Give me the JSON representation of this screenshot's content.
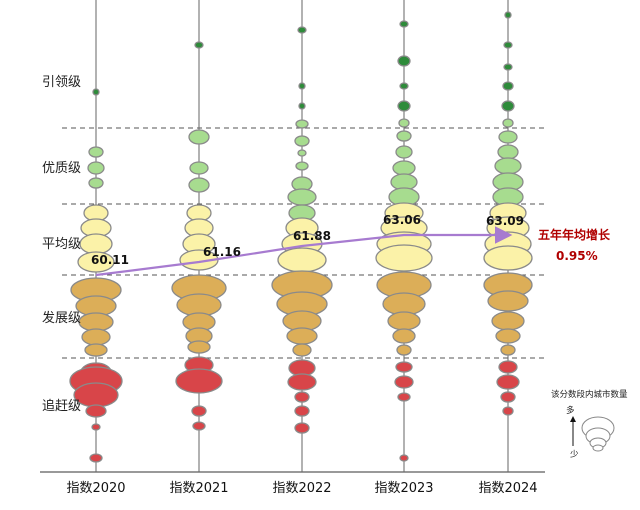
{
  "chart_data": {
    "type": "bubble-column",
    "categories": [
      "指数2020",
      "指数2021",
      "指数2022",
      "指数2023",
      "指数2024"
    ],
    "tiers": [
      "引领级",
      "优质级",
      "平均级",
      "发展级",
      "追赶级"
    ],
    "tier_colors": {
      "引领级": "#2e8b3a",
      "优质级": "#a7dc8f",
      "平均级": "#fbf2a8",
      "发展级": "#dcae58",
      "追赶级": "#d84549"
    },
    "averages": [
      60.11,
      61.16,
      61.88,
      63.06,
      63.09
    ],
    "average_labels": [
      "60.11",
      "61.16",
      "61.88",
      "63.06",
      "63.09"
    ],
    "trend_color": "#a77bd0",
    "growth_title": "五年年均增长",
    "growth_value": "0.95%",
    "legend": {
      "title": "该分数段内城市数量",
      "more": "多",
      "less": "少"
    }
  }
}
